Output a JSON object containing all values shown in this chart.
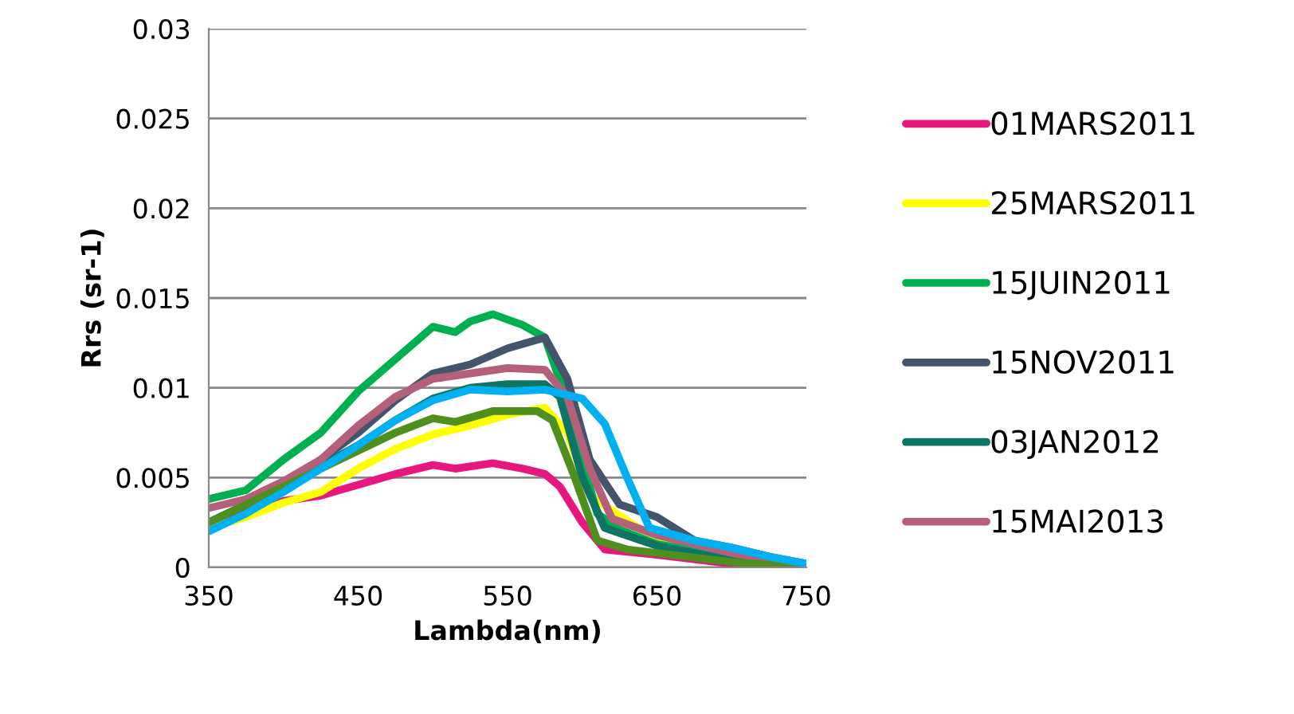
{
  "chart_data": {
    "type": "line",
    "xlabel": "Lambda(nm)",
    "ylabel": "Rrs (sr-1)",
    "xlim": [
      350,
      750
    ],
    "xticks": [
      350,
      450,
      550,
      650,
      750
    ],
    "ylim": [
      0,
      0.03
    ],
    "yticks": [
      {
        "value": 0,
        "label": "0"
      },
      0.005,
      0.01,
      0.015,
      0.02,
      0.025,
      0.03
    ],
    "grid": "y",
    "legend": "right",
    "line_style": "solid",
    "marker": "none",
    "series": [
      {
        "name": "01MARS2011",
        "color": "#e8177d",
        "x": [
          350,
          400,
          425,
          450,
          475,
          500,
          515,
          540,
          560,
          575,
          585,
          600,
          615,
          650,
          700,
          750
        ],
        "values": [
          0.0025,
          0.0037,
          0.004,
          0.0046,
          0.0052,
          0.0057,
          0.0055,
          0.0058,
          0.0055,
          0.0052,
          0.0045,
          0.0025,
          0.001,
          0.0007,
          0.0002,
          0
        ]
      },
      {
        "name": "25MARS2011",
        "color": "#ffff00",
        "x": [
          350,
          375,
          400,
          425,
          450,
          475,
          500,
          525,
          550,
          575,
          590,
          605,
          650,
          750
        ],
        "values": [
          0.0022,
          0.0028,
          0.0036,
          0.0042,
          0.0055,
          0.0066,
          0.0074,
          0.0079,
          0.0085,
          0.0089,
          0.0075,
          0.004,
          0.0015,
          0
        ]
      },
      {
        "name": "15JUIN2011",
        "color": "#00b050",
        "x": [
          350,
          375,
          400,
          425,
          450,
          475,
          500,
          515,
          525,
          540,
          560,
          575,
          590,
          600,
          610,
          625,
          650,
          700,
          750
        ],
        "values": [
          0.0038,
          0.0043,
          0.006,
          0.0075,
          0.0098,
          0.0116,
          0.0134,
          0.0131,
          0.0137,
          0.0141,
          0.0135,
          0.0128,
          0.0092,
          0.006,
          0.003,
          0.0021,
          0.0013,
          0.0006,
          0.0001
        ]
      },
      {
        "name": "15NOV2011",
        "color": "#44546a",
        "x": [
          350,
          400,
          450,
          475,
          500,
          525,
          550,
          575,
          590,
          605,
          625,
          650,
          675,
          700,
          725,
          750
        ],
        "values": [
          0.0025,
          0.0045,
          0.0075,
          0.0093,
          0.0108,
          0.0113,
          0.0122,
          0.0128,
          0.0105,
          0.006,
          0.0035,
          0.0028,
          0.0015,
          0.0011,
          0.0006,
          0.0002
        ]
      },
      {
        "name": "03JAN2012",
        "color": "#0e7564",
        "x": [
          350,
          400,
          450,
          475,
          500,
          525,
          550,
          575,
          585,
          600,
          615,
          650,
          700,
          750
        ],
        "values": [
          0.0025,
          0.0045,
          0.0068,
          0.0082,
          0.0094,
          0.01,
          0.0102,
          0.0102,
          0.0095,
          0.005,
          0.0022,
          0.0012,
          0.0004,
          0
        ]
      },
      {
        "name": "15MAI2013",
        "color": "#b5607a",
        "x": [
          350,
          375,
          400,
          425,
          450,
          475,
          500,
          525,
          550,
          575,
          590,
          605,
          620,
          650,
          700,
          750
        ],
        "values": [
          0.0033,
          0.0038,
          0.0048,
          0.006,
          0.0079,
          0.0095,
          0.0105,
          0.0108,
          0.0111,
          0.011,
          0.0095,
          0.0055,
          0.0027,
          0.0018,
          0.0008,
          0
        ]
      },
      {
        "color": "#4e8f1e",
        "x": [
          350,
          400,
          450,
          475,
          500,
          515,
          540,
          570,
          580,
          595,
          610,
          630,
          650,
          700,
          750
        ],
        "values": [
          0.0025,
          0.0045,
          0.0065,
          0.0075,
          0.0083,
          0.0081,
          0.0087,
          0.0087,
          0.0082,
          0.005,
          0.0015,
          0.001,
          0.0008,
          0.0003,
          0
        ]
      },
      {
        "color": "#00b0f0",
        "x": [
          350,
          375,
          400,
          425,
          450,
          475,
          500,
          525,
          550,
          575,
          600,
          615,
          630,
          645,
          675,
          700,
          725,
          750
        ],
        "values": [
          0.002,
          0.003,
          0.0042,
          0.0055,
          0.0068,
          0.0082,
          0.0093,
          0.0099,
          0.0098,
          0.0099,
          0.0094,
          0.008,
          0.005,
          0.0022,
          0.0015,
          0.0011,
          0.0006,
          0.0002
        ]
      }
    ]
  }
}
